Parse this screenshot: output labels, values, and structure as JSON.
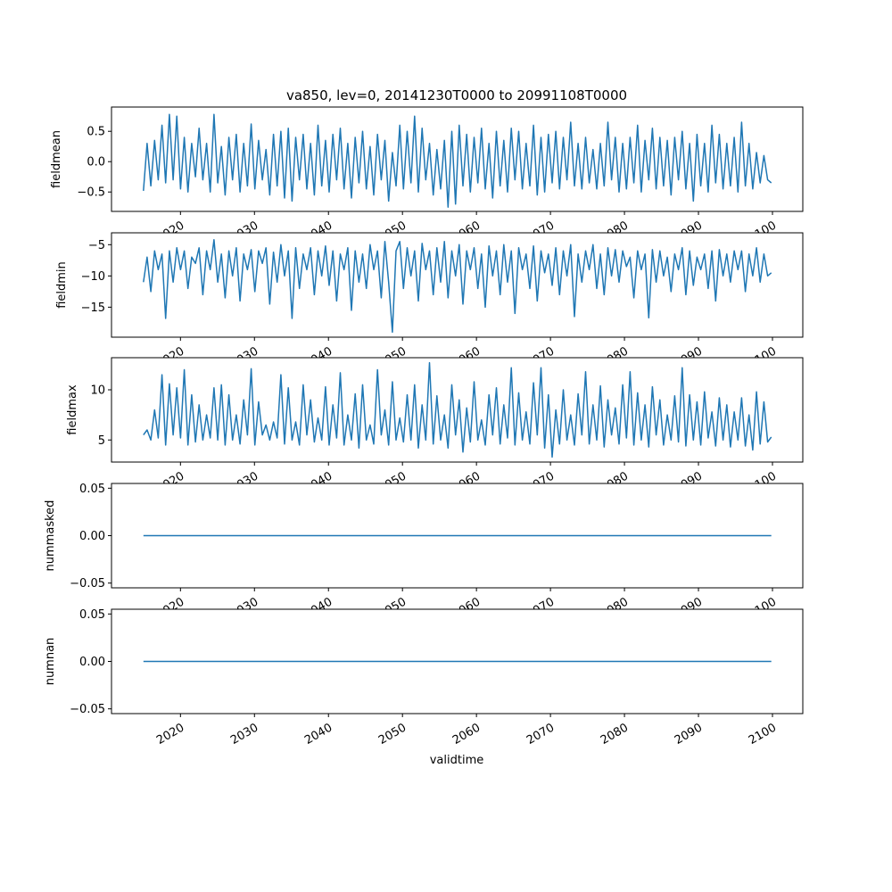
{
  "chart_data": {
    "type": "line",
    "title": "va850, lev=0, 20141230T0000 to 20991108T0000",
    "xlabel": "validtime",
    "xlim": [
      2010.68,
      2104.1
    ],
    "x_ticks": [
      2020,
      2030,
      2040,
      2050,
      2060,
      2070,
      2080,
      2090,
      2100
    ],
    "x_tick_labels": [
      "2020",
      "2030",
      "2040",
      "2050",
      "2060",
      "2070",
      "2080",
      "2090",
      "2100"
    ],
    "x_start": 2014.99,
    "x_end": 2099.85,
    "line_color": "#1f77b4",
    "grid": false,
    "panels": [
      {
        "ylabel": "fieldmean",
        "ylim": [
          -0.82,
          0.9
        ],
        "y_ticks": [
          0.5,
          0.0,
          -0.5
        ],
        "y_tick_labels": [
          "0.5",
          "0.0",
          "−0.5"
        ],
        "values": [
          -0.48,
          0.3,
          -0.4,
          0.35,
          -0.3,
          0.6,
          -0.35,
          0.78,
          -0.3,
          0.75,
          -0.45,
          0.4,
          -0.5,
          0.3,
          -0.25,
          0.55,
          -0.3,
          0.3,
          -0.5,
          0.78,
          -0.35,
          0.25,
          -0.55,
          0.4,
          -0.3,
          0.45,
          -0.5,
          0.3,
          -0.4,
          0.62,
          -0.45,
          0.35,
          -0.3,
          0.2,
          -0.55,
          0.45,
          -0.4,
          0.5,
          -0.6,
          0.55,
          -0.65,
          0.4,
          -0.3,
          0.45,
          -0.45,
          0.3,
          -0.55,
          0.6,
          -0.4,
          0.35,
          -0.5,
          0.45,
          -0.3,
          0.55,
          -0.45,
          0.3,
          -0.6,
          0.4,
          -0.35,
          0.5,
          -0.45,
          0.25,
          -0.55,
          0.45,
          -0.3,
          0.35,
          -0.65,
          0.15,
          -0.4,
          0.6,
          -0.45,
          0.5,
          -0.35,
          0.75,
          -0.5,
          0.55,
          -0.3,
          0.3,
          -0.55,
          0.2,
          -0.45,
          0.35,
          -0.75,
          0.5,
          -0.7,
          0.6,
          -0.4,
          0.45,
          -0.5,
          0.4,
          -0.35,
          0.55,
          -0.45,
          0.3,
          -0.6,
          0.5,
          -0.4,
          0.35,
          -0.5,
          0.55,
          -0.3,
          0.5,
          -0.45,
          0.3,
          -0.4,
          0.6,
          -0.55,
          0.4,
          -0.5,
          0.45,
          -0.35,
          0.5,
          -0.45,
          0.4,
          -0.3,
          0.65,
          -0.4,
          0.3,
          -0.45,
          0.4,
          -0.35,
          0.2,
          -0.45,
          0.3,
          -0.4,
          0.65,
          -0.3,
          0.4,
          -0.5,
          0.3,
          -0.45,
          0.4,
          -0.35,
          0.6,
          -0.5,
          0.35,
          -0.3,
          0.55,
          -0.45,
          0.4,
          -0.4,
          0.35,
          -0.55,
          0.4,
          -0.3,
          0.5,
          -0.45,
          0.3,
          -0.65,
          0.45,
          -0.4,
          0.3,
          -0.5,
          0.6,
          -0.35,
          0.45,
          -0.45,
          0.3,
          -0.4,
          0.4,
          -0.5,
          0.65,
          -0.4,
          0.3,
          -0.45,
          0.15,
          -0.35,
          0.1,
          -0.3,
          -0.35
        ]
      },
      {
        "ylabel": "fieldmin",
        "ylim": [
          -19.8,
          -3.1
        ],
        "y_ticks": [
          -5,
          -10,
          -15
        ],
        "y_tick_labels": [
          "−5",
          "−10",
          "−15"
        ],
        "values": [
          -11,
          -7,
          -12.5,
          -6,
          -9,
          -6.5,
          -16.8,
          -6,
          -11,
          -5.5,
          -9,
          -6,
          -12,
          -7,
          -8,
          -5.5,
          -13,
          -6,
          -9,
          -4.2,
          -11,
          -6.5,
          -13.5,
          -6,
          -10,
          -5.5,
          -14,
          -6.5,
          -9,
          -5.8,
          -12.5,
          -6,
          -8,
          -5.5,
          -14.5,
          -6.2,
          -11,
          -5,
          -10,
          -6,
          -16.8,
          -5.5,
          -12,
          -6.5,
          -9,
          -5.5,
          -13,
          -6,
          -10,
          -5.2,
          -11.5,
          -6,
          -14,
          -6.5,
          -9,
          -5.5,
          -15.5,
          -6,
          -11,
          -6.5,
          -12,
          -5,
          -9,
          -6,
          -13.5,
          -4.5,
          -11,
          -19,
          -6,
          -4.5,
          -12,
          -5.5,
          -10,
          -6,
          -14,
          -4.8,
          -9,
          -6,
          -13,
          -5.5,
          -11,
          -4.5,
          -13.5,
          -6,
          -10,
          -5,
          -14.5,
          -6,
          -9,
          -5.5,
          -12,
          -6.5,
          -15,
          -5.2,
          -10,
          -6,
          -13,
          -5,
          -11,
          -6,
          -16,
          -5.5,
          -9,
          -6.5,
          -12,
          -5.2,
          -14,
          -6,
          -9.5,
          -6.5,
          -11.5,
          -5.5,
          -13,
          -6,
          -10,
          -5,
          -16.5,
          -6.5,
          -11,
          -6,
          -9,
          -5,
          -12,
          -6.5,
          -13,
          -5.5,
          -10,
          -5.8,
          -11,
          -6,
          -8.5,
          -7,
          -13.5,
          -6,
          -9,
          -6.5,
          -16.7,
          -5.8,
          -11,
          -6,
          -10,
          -7,
          -12.5,
          -6.5,
          -9,
          -5.5,
          -13,
          -6,
          -11.5,
          -7,
          -9,
          -6.5,
          -12,
          -6,
          -14,
          -5.8,
          -10,
          -6.5,
          -11,
          -6,
          -9,
          -6,
          -12.5,
          -6.5,
          -10,
          -5.5,
          -11,
          -6.5,
          -10,
          -9.5
        ]
      },
      {
        "ylabel": "fieldmax",
        "ylim": [
          2.8,
          13.2
        ],
        "y_ticks": [
          10,
          5
        ],
        "y_tick_labels": [
          "10",
          "5"
        ],
        "values": [
          5.5,
          6,
          5,
          8,
          5.2,
          11.5,
          4.5,
          10.6,
          5.5,
          10.2,
          5.2,
          12,
          4.5,
          9.5,
          4.8,
          8.5,
          5,
          7.5,
          5.2,
          10.2,
          5,
          10.5,
          4.5,
          9.5,
          5,
          7.5,
          4.6,
          9,
          5.5,
          12.1,
          4.5,
          8.8,
          5.5,
          6.5,
          5,
          6.8,
          5.2,
          11.5,
          4.6,
          10.2,
          5,
          6.8,
          4.5,
          10.5,
          5.5,
          9,
          4.8,
          7.2,
          5,
          10.3,
          4.5,
          8.5,
          5.2,
          11.7,
          4.5,
          7.5,
          5,
          9.6,
          4.2,
          10.5,
          5,
          6.5,
          4.6,
          12,
          5.5,
          8,
          4.5,
          10.8,
          5,
          7.2,
          4.8,
          9.5,
          5,
          10.5,
          4.2,
          8.5,
          5,
          12.7,
          4.6,
          9.4,
          5,
          7.5,
          4.2,
          10.5,
          5.5,
          9,
          3.8,
          8.2,
          4.8,
          10.8,
          5,
          7,
          4.5,
          9.5,
          5.5,
          10.2,
          4.6,
          8.5,
          5.2,
          12.2,
          4.5,
          9.7,
          5,
          7.8,
          4.6,
          10.7,
          5.5,
          12.2,
          4.2,
          9.5,
          3.3,
          8,
          4.6,
          10,
          5,
          7.5,
          4.5,
          9.6,
          5.5,
          11.8,
          4.6,
          8.5,
          5,
          10.4,
          4.3,
          9,
          5.5,
          8.2,
          4.6,
          10.5,
          5.2,
          11.8,
          4.5,
          9.7,
          5,
          8.5,
          4.3,
          10.3,
          5.5,
          9,
          4.5,
          7.5,
          5,
          9.4,
          4.8,
          12.2,
          4.4,
          9.5,
          5,
          8.8,
          4.5,
          9.8,
          5.2,
          7.8,
          4.4,
          9.2,
          5,
          8.5,
          4.3,
          7.8,
          5,
          9.2,
          4.4,
          7.5,
          4,
          9.8,
          4.6,
          8.8,
          4.8,
          5.3
        ]
      },
      {
        "ylabel": "nummasked",
        "ylim": [
          -0.055,
          0.055
        ],
        "y_ticks": [
          0.05,
          0.0,
          -0.05
        ],
        "y_tick_labels": [
          "0.05",
          "0.00",
          "−0.05"
        ],
        "values": [
          0,
          0
        ]
      },
      {
        "ylabel": "numnan",
        "ylim": [
          -0.055,
          0.055
        ],
        "y_ticks": [
          0.05,
          0.0,
          -0.05
        ],
        "y_tick_labels": [
          "0.05",
          "0.00",
          "−0.05"
        ],
        "values": [
          0,
          0
        ]
      }
    ]
  }
}
